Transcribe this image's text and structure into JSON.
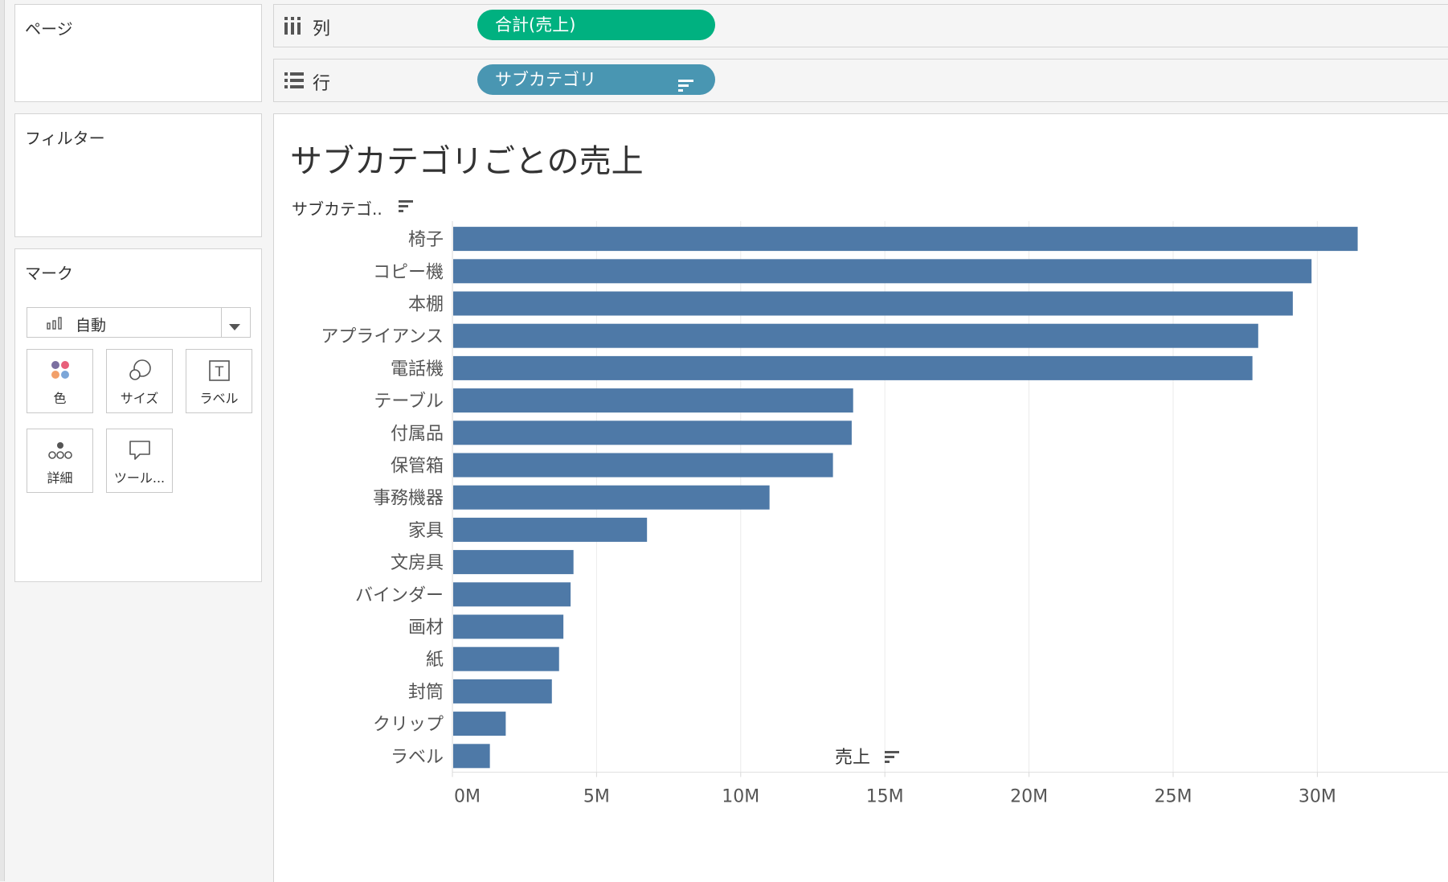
{
  "shelves": {
    "pages_label": "ページ",
    "filters_label": "フィルター",
    "columns": {
      "label": "列",
      "pill": "合計(売上)"
    },
    "rows": {
      "label": "行",
      "pill": "サブカテゴリ"
    }
  },
  "marks": {
    "title": "マーク",
    "type": "自動",
    "buttons": {
      "color": "色",
      "size": "サイズ",
      "label": "ラベル",
      "detail": "詳細",
      "tooltip": "ツール..."
    }
  },
  "colors": {
    "bar": "#4e79a7",
    "columns_pill": "#00b180",
    "rows_pill": "#4996b2"
  },
  "chart_data": {
    "type": "bar",
    "orientation": "horizontal",
    "title": "サブカテゴリごとの売上",
    "ylabel": "サブカテゴ..",
    "xlabel": "売上",
    "categories": [
      "椅子",
      "コピー機",
      "本棚",
      "アプライアンス",
      "電話機",
      "テーブル",
      "付属品",
      "保管箱",
      "事務機器",
      "家具",
      "文房具",
      "バインダー",
      "画材",
      "紙",
      "封筒",
      "クリップ",
      "ラベル"
    ],
    "values": [
      31400000,
      29800000,
      29150000,
      27950000,
      27750000,
      13900000,
      13850000,
      13200000,
      11000000,
      6750000,
      4200000,
      4100000,
      3850000,
      3700000,
      3450000,
      1850000,
      1300000
    ],
    "xlim": [
      0,
      33000000
    ],
    "x_ticks": [
      0,
      5000000,
      10000000,
      15000000,
      20000000,
      25000000,
      30000000
    ],
    "x_tick_labels": [
      "0M",
      "5M",
      "10M",
      "15M",
      "20M",
      "25M",
      "30M"
    ],
    "grid": "vertical",
    "sorted": "descending"
  }
}
